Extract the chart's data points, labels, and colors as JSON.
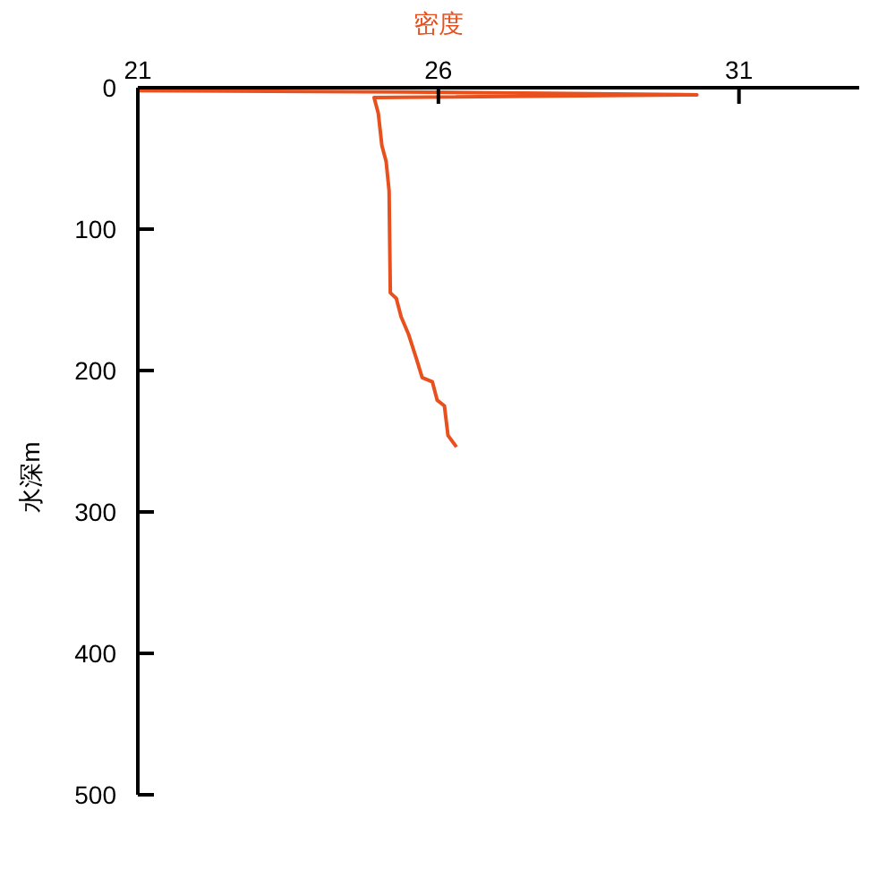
{
  "chart_data": {
    "type": "line",
    "xlabel": "密度",
    "ylabel": "水深m",
    "xlim": [
      21,
      33
    ],
    "ylim": [
      500,
      0
    ],
    "xticks": [
      21,
      26,
      31
    ],
    "yticks": [
      0,
      100,
      200,
      300,
      400,
      500
    ],
    "series": [
      {
        "color": "#e8501e",
        "x": [
          21,
          25.4,
          30.3,
          24.93,
          25.0,
          25.06,
          25.13,
          25.18,
          25.2,
          25.3,
          25.38,
          25.5,
          25.63,
          25.73,
          25.9,
          25.98,
          26.1,
          26.16,
          26.3
        ],
        "values": [
          2,
          3,
          5,
          7,
          18,
          41,
          52,
          73,
          145,
          149,
          162,
          174,
          191,
          205,
          208,
          221,
          225,
          246,
          254
        ]
      }
    ]
  }
}
